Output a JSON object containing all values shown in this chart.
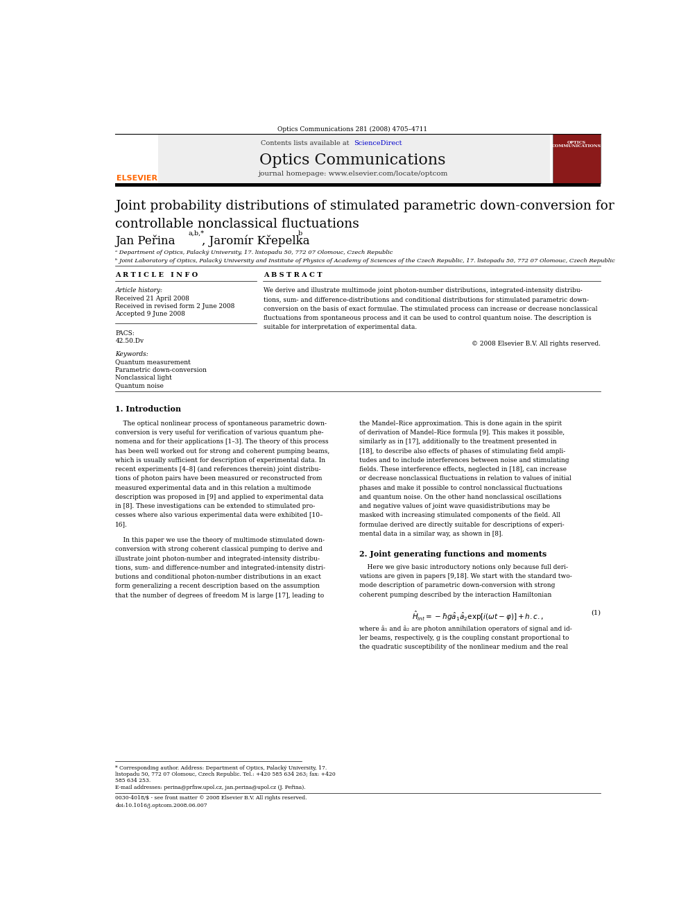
{
  "page_width": 9.92,
  "page_height": 13.23,
  "background_color": "#ffffff",
  "header_journal": "Optics Communications 281 (2008) 4705–4711",
  "journal_name": "Optics Communications",
  "journal_url": "journal homepage: www.elsevier.com/locate/optcom",
  "contents_text": "Contents lists available at ScienceDirect",
  "title_line1": "Joint probability distributions of stimulated parametric down-conversion for",
  "title_line2": "controllable nonclassical fluctuations",
  "author1": "Jan Peřina",
  "author1_super": "a,b,*",
  "author2": ", Jaromír Křepelka",
  "author2_super": "b",
  "affil1": "ᵃ Department of Optics, Palacký University, 17. listopadu 50, 772 07 Olomouc, Czech Republic",
  "affil2": "ᵇ Joint Laboratory of Optics, Palacký University and Institute of Physics of Academy of Sciences of the Czech Republic, 17. listopadu 50, 772 07 Olomouc, Czech Republic",
  "article_info_label": "A R T I C L E   I N F O",
  "abstract_label": "A B S T R A C T",
  "article_history_label": "Article history:",
  "received1": "Received 21 April 2008",
  "received2": "Received in revised form 2 June 2008",
  "accepted": "Accepted 9 June 2008",
  "pacs_label": "PACS:",
  "pacs_values": "42.50.Dv",
  "keywords_label": "Keywords:",
  "kw1": "Quantum measurement",
  "kw2": "Parametric down-conversion",
  "kw3": "Nonclassical light",
  "kw4": "Quantum noise",
  "abstract_lines": [
    "We derive and illustrate multimode joint photon-number distributions, integrated-intensity distribu-",
    "tions, sum- and difference-distributions and conditional distributions for stimulated parametric down-",
    "conversion on the basis of exact formulae. The stimulated process can increase or decrease nonclassical",
    "fluctuations from spontaneous process and it can be used to control quantum noise. The description is",
    "suitable for interpretation of experimental data."
  ],
  "copyright": "© 2008 Elsevier B.V. All rights reserved.",
  "section1_title": "1. Introduction",
  "col1_intro_lines": [
    "    The optical nonlinear process of spontaneous parametric down-",
    "conversion is very useful for verification of various quantum phe-",
    "nomena and for their applications [1–3]. The theory of this process",
    "has been well worked out for strong and coherent pumping beams,",
    "which is usually sufficient for description of experimental data. In",
    "recent experiments [4–8] (and references therein) joint distribu-",
    "tions of photon pairs have been measured or reconstructed from",
    "measured experimental data and in this relation a multimode",
    "description was proposed in [9] and applied to experimental data",
    "in [8]. These investigations can be extended to stimulated pro-",
    "cesses where also various experimental data were exhibited [10–",
    "16]."
  ],
  "col1_intro_lines2": [
    "    In this paper we use the theory of multimode stimulated down-",
    "conversion with strong coherent classical pumping to derive and",
    "illustrate joint photon-number and integrated-intensity distribu-",
    "tions, sum- and difference-number and integrated-intensity distri-",
    "butions and conditional photon-number distributions in an exact",
    "form generalizing a recent description based on the assumption",
    "that the number of degrees of freedom M is large [17], leading to"
  ],
  "col2_intro_lines": [
    "the Mandel–Rice approximation. This is done again in the spirit",
    "of derivation of Mandel–Rice formula [9]. This makes it possible,",
    "similarly as in [17], additionally to the treatment presented in",
    "[18], to describe also effects of phases of stimulating field ampli-",
    "tudes and to include interferences between noise and stimulating",
    "fields. These interference effects, neglected in [18], can increase",
    "or decrease nonclassical fluctuations in relation to values of initial",
    "phases and make it possible to control nonclassical fluctuations",
    "and quantum noise. On the other hand nonclassical oscillations",
    "and negative values of joint wave quasidistributions may be",
    "masked with increasing stimulated components of the field. All",
    "formulae derived are directly suitable for descriptions of experi-",
    "mental data in a similar way, as shown in [8]."
  ],
  "section2_title": "2. Joint generating functions and moments",
  "sec2_lines": [
    "    Here we give basic introductory notions only because full deri-",
    "vations are given in papers [9,18]. We start with the standard two-",
    "mode description of parametric down-conversion with strong",
    "coherent pumping described by the interaction Hamiltonian"
  ],
  "eq1_number": "(1)",
  "after_eq_lines": [
    "where â₁ and â₂ are photon annihilation operators of signal and id-",
    "ler beams, respectively, g is the coupling constant proportional to",
    "the quadratic susceptibility of the nonlinear medium and the real"
  ],
  "footnote_lines": [
    "* Corresponding author. Address: Department of Optics, Palacký University, 17.",
    "listopadu 50, 772 07 Olomouc, Czech Republic. Tel.: +420 585 634 263; fax: +420",
    "585 634 253.",
    "E-mail addresses: perina@prfnw.upol.cz, jan.perina@upol.cz (J. Peřina)."
  ],
  "footer_issn": "0030-4018/$ - see front matter © 2008 Elsevier B.V. All rights reserved.",
  "footer_doi": "doi:10.1016/j.optcom.2008.06.007",
  "elsevier_color": "#FF6600",
  "link_color": "#0000CC",
  "header_bg": "#EEEEEE",
  "journal_cover_bg": "#8B1A1A"
}
